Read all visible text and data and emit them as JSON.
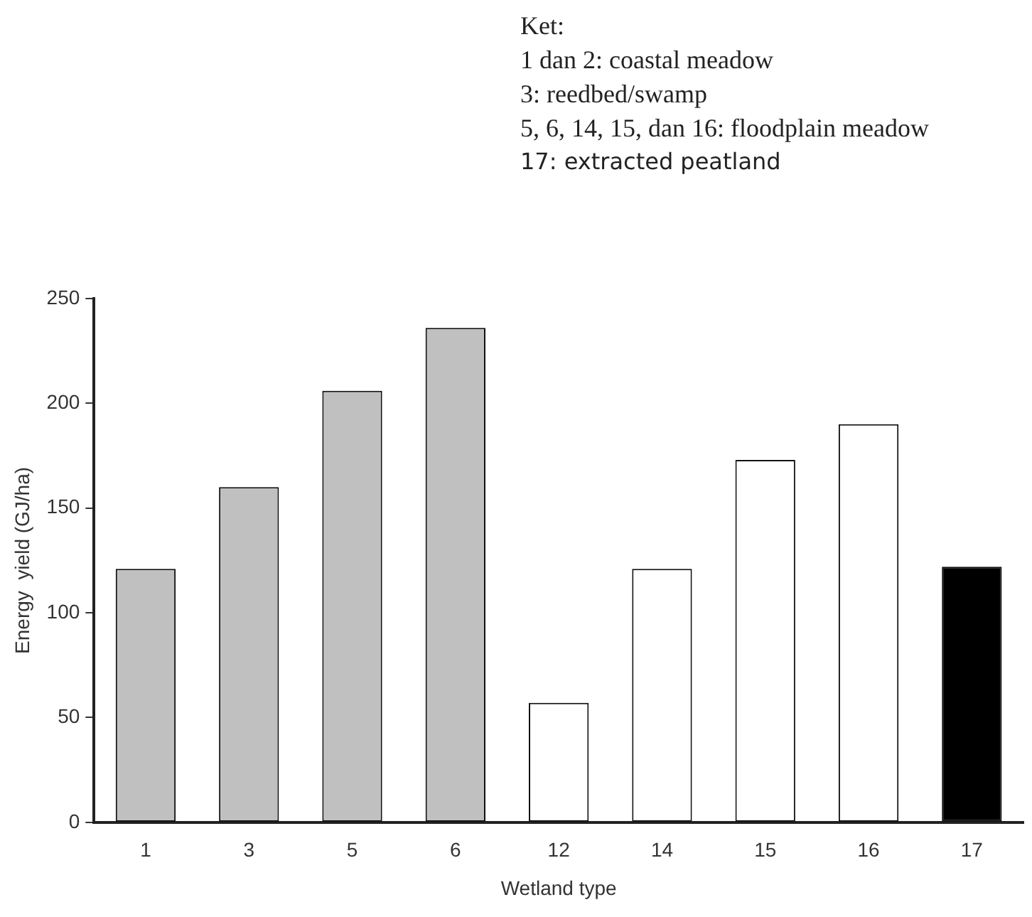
{
  "chart_data": {
    "type": "bar",
    "xlabel": "Wetland type",
    "ylabel": "Energy  yield (GJ/ha)",
    "categories": [
      "1",
      "3",
      "5",
      "6",
      "12",
      "14",
      "15",
      "16",
      "17"
    ],
    "values": [
      121,
      160,
      206,
      236,
      57,
      121,
      173,
      190,
      122
    ],
    "colors": [
      "#c0c0c0",
      "#c0c0c0",
      "#c0c0c0",
      "#c0c0c0",
      "#ffffff",
      "#ffffff",
      "#ffffff",
      "#ffffff",
      "#000000"
    ],
    "ylim": [
      0,
      250
    ],
    "yticks": [
      0,
      50,
      100,
      150,
      200,
      250
    ],
    "grid": false,
    "legend": false,
    "annotations": [
      "Ket:",
      "1 dan 2: coastal meadow",
      "3: reedbed/swamp",
      "5, 6, 14, 15, dan 16: floodplain meadow",
      "17: extracted peatland"
    ]
  }
}
